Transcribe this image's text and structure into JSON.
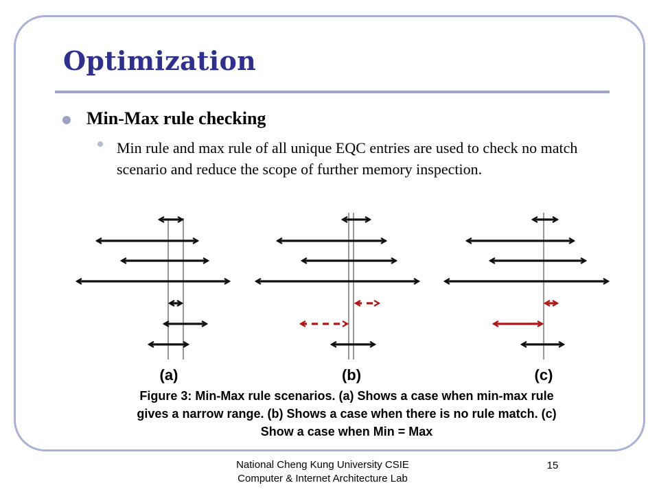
{
  "slide": {
    "title": "Optimization",
    "bullet": "Min-Max rule checking",
    "sub_bullet": "Min rule and max rule of all unique EQC entries are used to check no match scenario and reduce the scope of further memory inspection."
  },
  "figure": {
    "caption_lines": [
      "Figure 3: Min-Max rule scenarios. (a) Shows a case when min-max rule",
      "gives a narrow range. (b) Shows a case when there is no rule match. (c)",
      "Show a case when Min = Max"
    ],
    "panels": [
      {
        "label": "(a)",
        "lines": [
          245,
          267
        ],
        "arrows": [
          {
            "from": 230,
            "to": 268,
            "style": "solid",
            "color": "black"
          },
          {
            "from": 139,
            "to": 290,
            "style": "solid",
            "color": "black"
          },
          {
            "from": 175,
            "to": 305,
            "style": "solid",
            "color": "black"
          },
          {
            "from": 110,
            "to": 336,
            "style": "solid",
            "color": "black"
          },
          {
            "from": 245,
            "to": 267,
            "style": "solid",
            "color": "black"
          },
          {
            "from": 237,
            "to": 303,
            "style": "solid",
            "color": "black"
          },
          {
            "from": 215,
            "to": 276,
            "style": "solid",
            "color": "black"
          }
        ]
      },
      {
        "label": "(b)",
        "lines": [
          508,
          515
        ],
        "arrows": [
          {
            "from": 497,
            "to": 541,
            "style": "solid",
            "color": "black"
          },
          {
            "from": 402,
            "to": 564,
            "style": "solid",
            "color": "black"
          },
          {
            "from": 438,
            "to": 579,
            "style": "solid",
            "color": "black"
          },
          {
            "from": 371,
            "to": 612,
            "style": "solid",
            "color": "black"
          },
          {
            "from": 516,
            "to": 554,
            "style": "dashed",
            "color": "red"
          },
          {
            "from": 436,
            "to": 508,
            "style": "dashed",
            "color": "red"
          },
          {
            "from": 481,
            "to": 548,
            "style": "solid",
            "color": "black"
          }
        ]
      },
      {
        "label": "(c)",
        "lines": [
          792
        ],
        "arrows": [
          {
            "from": 774,
            "to": 814,
            "style": "solid",
            "color": "black"
          },
          {
            "from": 678,
            "to": 838,
            "style": "solid",
            "color": "black"
          },
          {
            "from": 712,
            "to": 855,
            "style": "solid",
            "color": "black"
          },
          {
            "from": 646,
            "to": 888,
            "style": "solid",
            "color": "black"
          },
          {
            "from": 792,
            "to": 814,
            "style": "solid",
            "color": "red"
          },
          {
            "from": 717,
            "to": 792,
            "style": "solid",
            "color": "red"
          },
          {
            "from": 758,
            "to": 823,
            "style": "solid",
            "color": "black"
          }
        ]
      }
    ]
  },
  "footer": {
    "line1": "National Cheng Kung University CSIE",
    "line2": "Computer & Internet Architecture Lab",
    "page_number": "15"
  },
  "colors": {
    "title": "#2e2f8f",
    "frame": "#a9aedb",
    "arrow_black": "#111111",
    "arrow_red": "#b01818",
    "guide_line": "#555555"
  }
}
